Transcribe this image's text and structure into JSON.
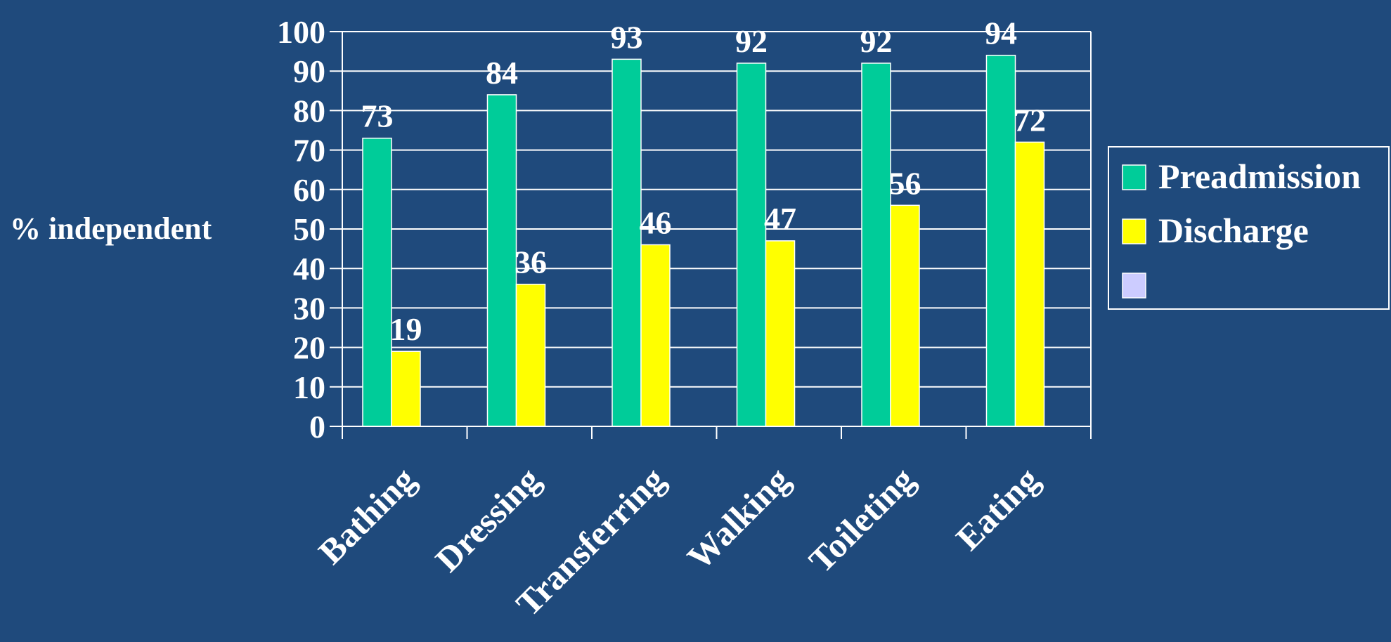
{
  "chart_data": {
    "type": "bar",
    "ylabel": "% independent",
    "xlabel": "",
    "title": "",
    "categories": [
      "Bathing",
      "Dressing",
      "Transferring",
      "Walking",
      "Toileting",
      "Eating"
    ],
    "series": [
      {
        "name": "Preadmission",
        "color": "#00cc99",
        "values": [
          73,
          84,
          93,
          92,
          92,
          94
        ]
      },
      {
        "name": "Discharge",
        "color": "#ffff00",
        "values": [
          19,
          36,
          46,
          47,
          56,
          72
        ]
      }
    ],
    "legend_extra_swatch_color": "#ccccff",
    "ylim": [
      0,
      100
    ],
    "yticks": [
      0,
      10,
      20,
      30,
      40,
      50,
      60,
      70,
      80,
      90,
      100
    ],
    "grid": true,
    "legend_position": "right",
    "data_labels": true
  }
}
